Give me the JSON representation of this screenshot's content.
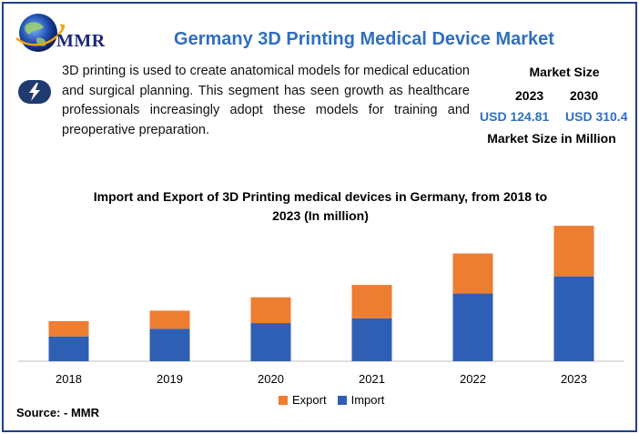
{
  "header": {
    "logo_text": "MMR",
    "title": "Germany 3D Printing Medical Device Market"
  },
  "description": "3D printing is used to create anatomical models for medical education and surgical planning. This segment has seen growth as healthcare professionals increasingly adopt these models for training and preoperative preparation.",
  "market_size": {
    "title": "Market Size",
    "year_start": "2023",
    "year_end": "2030",
    "value_start": "USD 124.81",
    "value_end": "USD 310.4",
    "footer": "Market Size in Million"
  },
  "chart_data": {
    "type": "bar",
    "stacked": true,
    "title": "Import and Export of 3D Printing medical devices in Germany, from 2018 to 2023 (In million)",
    "categories": [
      "2018",
      "2019",
      "2020",
      "2021",
      "2022",
      "2023"
    ],
    "series": [
      {
        "name": "Import",
        "color": "#2f5fb5",
        "values": [
          26,
          34,
          40,
          45,
          71,
          89
        ]
      },
      {
        "name": "Export",
        "color": "#ed7d31",
        "values": [
          16,
          19,
          27,
          35,
          42,
          53
        ]
      }
    ],
    "legend_order": [
      "Export",
      "Import"
    ],
    "ylim": [
      0,
      145
    ],
    "xlabel": "",
    "ylabel": "",
    "grid": false,
    "legend_position": "bottom"
  },
  "source": "Source: - MMR",
  "colors": {
    "title_blue": "#2f6fc0",
    "frame_blue": "#1f3f8f",
    "import_blue": "#2f5fb5",
    "export_orange": "#ed7d31"
  }
}
